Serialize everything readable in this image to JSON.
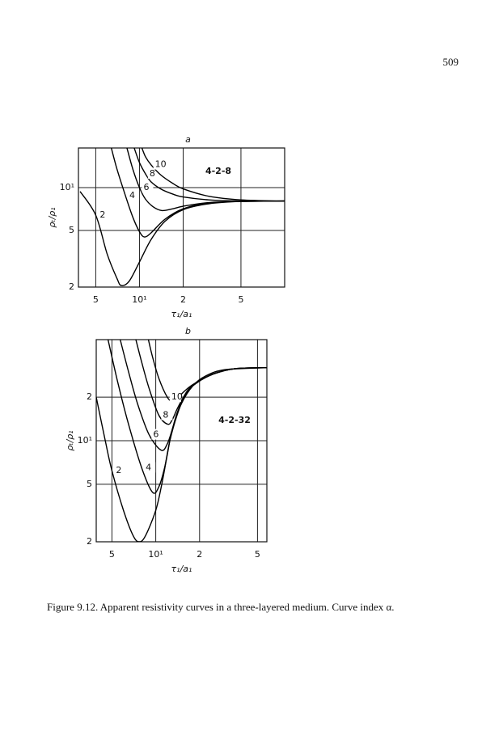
{
  "page_number": "509",
  "chart_data": [
    {
      "type": "line",
      "title": "a",
      "annotation": "4-2-8",
      "x_label": "τ₁/a₁",
      "y_label": "ρₜ/ρ₁",
      "xscale": "log",
      "yscale": "log",
      "grid": true,
      "xlim": [
        3.8,
        100
      ],
      "ylim": [
        2,
        19
      ],
      "xticks": [
        5,
        {
          "value": 10,
          "label": "10¹"
        },
        {
          "value": 20,
          "label": "2"
        },
        {
          "value": 50,
          "label": "5"
        }
      ],
      "yticks": [
        2,
        5,
        {
          "value": 10,
          "label": "10¹"
        }
      ],
      "series": [
        {
          "name": "2",
          "color": "#000000",
          "x": [
            3.9,
            5,
            6,
            7,
            7.5,
            8.5,
            10,
            12,
            15,
            20,
            30,
            50,
            100
          ],
          "values": [
            9.4,
            6.4,
            3.4,
            2.3,
            2.05,
            2.2,
            3.0,
            4.3,
            5.8,
            7.0,
            7.7,
            8.0,
            8.05
          ]
        },
        {
          "name": "4",
          "color": "#000000",
          "x": [
            6.4,
            7,
            8,
            9,
            10,
            10.8,
            12,
            15,
            20,
            30,
            50,
            100
          ],
          "values": [
            19,
            13.5,
            8.8,
            6.2,
            4.9,
            4.5,
            4.8,
            6.0,
            7.1,
            7.8,
            8.0,
            8.05
          ]
        },
        {
          "name": "6",
          "color": "#000000",
          "x": [
            8.2,
            9,
            10,
            11,
            12.5,
            14.3,
            17,
            20,
            30,
            50,
            100
          ],
          "values": [
            19,
            13.5,
            10,
            8.3,
            7.3,
            6.9,
            7.1,
            7.4,
            7.85,
            8.0,
            8.05
          ]
        },
        {
          "name": "8",
          "color": "#000000",
          "x": [
            9.2,
            10,
            11,
            12,
            14,
            17,
            20,
            30,
            50,
            100
          ],
          "values": [
            19,
            15,
            12.5,
            11,
            9.8,
            9.0,
            8.6,
            8.2,
            8.05,
            8.05
          ]
        },
        {
          "name": "10",
          "color": "#000000",
          "x": [
            10.4,
            11,
            12,
            14,
            17,
            20,
            30,
            50,
            100
          ],
          "values": [
            19,
            16.5,
            14.5,
            12.3,
            10.7,
            9.8,
            8.7,
            8.2,
            8.05
          ]
        }
      ]
    },
    {
      "type": "line",
      "title": "b",
      "annotation": "4-2-32",
      "x_label": "τ₁/a₁",
      "y_label": "ρₜ/ρ₁",
      "xscale": "log",
      "yscale": "log",
      "grid": true,
      "xlim": [
        3.9,
        58
      ],
      "ylim": [
        2,
        50
      ],
      "xticks": [
        5,
        {
          "value": 10,
          "label": "10¹"
        },
        {
          "value": 20,
          "label": "2"
        },
        {
          "value": 50,
          "label": "5"
        }
      ],
      "yticks": [
        2,
        5,
        {
          "value": 10,
          "label": "10¹"
        },
        {
          "value": 20,
          "label": "2"
        }
      ],
      "series": [
        {
          "name": "2",
          "color": "#000000",
          "x": [
            3.9,
            4.5,
            5,
            6,
            7,
            7.7,
            8.5,
            10,
            11,
            12,
            13,
            15,
            18,
            22,
            30,
            58
          ],
          "values": [
            20,
            10,
            6.2,
            3.3,
            2.2,
            2.0,
            2.2,
            3.3,
            5,
            8,
            12,
            18,
            24,
            28,
            31,
            32
          ]
        },
        {
          "name": "4",
          "color": "#000000",
          "x": [
            4.7,
            5.5,
            6.5,
            8,
            9.5,
            10.5,
            11.5,
            12.5,
            14,
            16,
            19,
            25,
            35,
            58
          ],
          "values": [
            50,
            25,
            13,
            6.5,
            4.4,
            4.8,
            6.5,
            10,
            15,
            21,
            25,
            29,
            31.5,
            32
          ]
        },
        {
          "name": "6",
          "color": "#000000",
          "x": [
            5.7,
            6.5,
            7.5,
            9,
            10.9,
            12,
            13,
            14,
            16,
            19,
            25,
            35,
            58
          ],
          "values": [
            50,
            30,
            18,
            11,
            8.6,
            9.5,
            12,
            15.5,
            21,
            25,
            29,
            31.5,
            32
          ]
        },
        {
          "name": "8",
          "color": "#000000",
          "x": [
            7.3,
            8,
            9,
            10.5,
            12.1,
            13,
            14,
            15.5,
            17,
            20,
            25,
            35,
            58
          ],
          "values": [
            50,
            35,
            23,
            15,
            13,
            14,
            16.5,
            20,
            23,
            26,
            29,
            31.5,
            32
          ]
        },
        {
          "name": "10",
          "color": "#000000",
          "x": [
            8.9,
            9.5,
            10.5,
            12,
            13,
            14,
            15,
            17,
            20,
            25,
            35,
            58
          ],
          "values": [
            50,
            38,
            27,
            20,
            18.8,
            19.5,
            21,
            23.5,
            26,
            29,
            31.5,
            32
          ]
        }
      ]
    }
  ],
  "caption": "Figure 9.12. Apparent resistivity curves in a three-layered medium. Curve index α."
}
